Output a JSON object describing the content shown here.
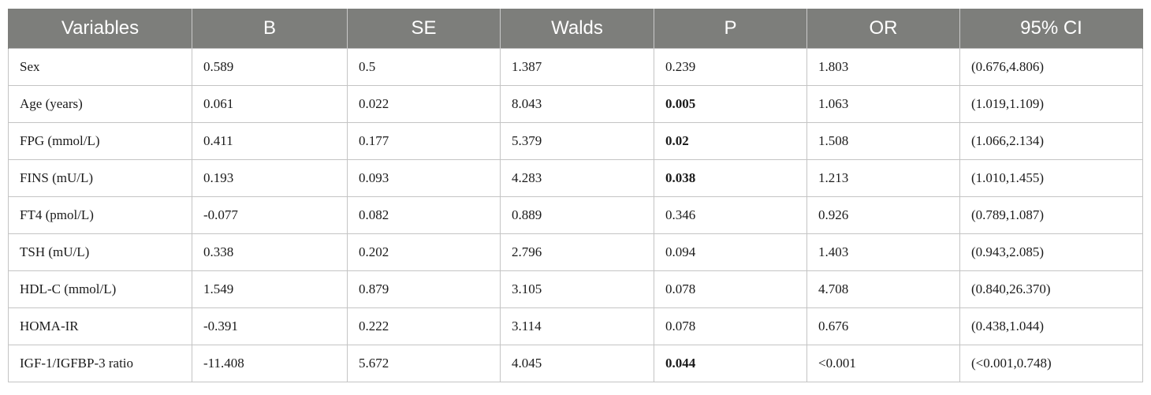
{
  "table": {
    "headers": [
      "Variables",
      "B",
      "SE",
      "Walds",
      "P",
      "OR",
      "95% CI"
    ],
    "rows": [
      {
        "variable": "Sex",
        "b": "0.589",
        "se": "0.5",
        "walds": "1.387",
        "p": "0.239",
        "p_bold": false,
        "or": "1.803",
        "ci": "(0.676,4.806)"
      },
      {
        "variable": "Age (years)",
        "b": "0.061",
        "se": "0.022",
        "walds": "8.043",
        "p": "0.005",
        "p_bold": true,
        "or": "1.063",
        "ci": "(1.019,1.109)"
      },
      {
        "variable": "FPG (mmol/L)",
        "b": "0.411",
        "se": "0.177",
        "walds": "5.379",
        "p": "0.02",
        "p_bold": true,
        "or": "1.508",
        "ci": "(1.066,2.134)"
      },
      {
        "variable": "FINS (mU/L)",
        "b": "0.193",
        "se": "0.093",
        "walds": "4.283",
        "p": "0.038",
        "p_bold": true,
        "or": "1.213",
        "ci": "(1.010,1.455)"
      },
      {
        "variable": "FT4 (pmol/L)",
        "b": "-0.077",
        "se": "0.082",
        "walds": "0.889",
        "p": "0.346",
        "p_bold": false,
        "or": "0.926",
        "ci": "(0.789,1.087)"
      },
      {
        "variable": "TSH (mU/L)",
        "b": "0.338",
        "se": "0.202",
        "walds": "2.796",
        "p": "0.094",
        "p_bold": false,
        "or": "1.403",
        "ci": "(0.943,2.085)"
      },
      {
        "variable": "HDL-C (mmol/L)",
        "b": "1.549",
        "se": "0.879",
        "walds": "3.105",
        "p": "0.078",
        "p_bold": false,
        "or": "4.708",
        "ci": "(0.840,26.370)"
      },
      {
        "variable": "HOMA-IR",
        "b": "-0.391",
        "se": "0.222",
        "walds": "3.114",
        "p": "0.078",
        "p_bold": false,
        "or": "0.676",
        "ci": "(0.438,1.044)"
      },
      {
        "variable": "IGF-1/IGFBP-3 ratio",
        "b": "-11.408",
        "se": "5.672",
        "walds": "4.045",
        "p": "0.044",
        "p_bold": true,
        "or": "<0.001",
        "ci": "(<0.001,0.748)"
      }
    ]
  },
  "colors": {
    "header_bg": "#7d7e7b",
    "header_text": "#ffffff",
    "border": "#c4c4c4"
  }
}
